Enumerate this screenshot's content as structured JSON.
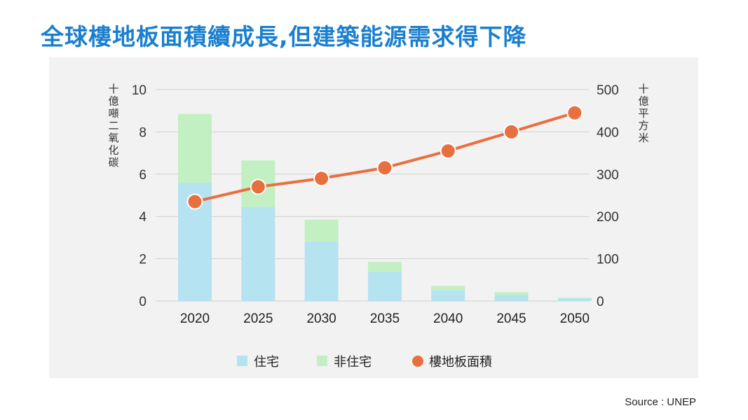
{
  "title": "全球樓地板面積續成長,但建築能源需求得下降",
  "source": "Source : UNEP",
  "chart_data": {
    "type": "bar",
    "categories": [
      "2020",
      "2025",
      "2030",
      "2035",
      "2040",
      "2045",
      "2050"
    ],
    "series": [
      {
        "name": "住宅",
        "kind": "bar",
        "axis": "left",
        "color": "#b6e3f0",
        "values": [
          5.6,
          4.45,
          2.8,
          1.4,
          0.5,
          0.28,
          0.12
        ]
      },
      {
        "name": "非住宅",
        "kind": "bar",
        "axis": "left",
        "color": "#c2f0c2",
        "values": [
          3.25,
          2.2,
          1.05,
          0.45,
          0.22,
          0.14,
          0.03
        ]
      },
      {
        "name": "樓地板面積",
        "kind": "line",
        "axis": "right",
        "color": "#e8703f",
        "values": [
          235,
          270,
          290,
          315,
          355,
          400,
          445
        ]
      }
    ],
    "ylabel_left": "十億噸二氧化碳",
    "ylabel_right": "十億平方米",
    "ylim_left": [
      0,
      10
    ],
    "ylim_right": [
      0,
      500
    ],
    "yticks_left": [
      "0",
      "2",
      "4",
      "6",
      "8",
      "10"
    ],
    "yticks_right": [
      "0",
      "100",
      "200",
      "300",
      "400",
      "500"
    ],
    "legend_position": "bottom"
  }
}
